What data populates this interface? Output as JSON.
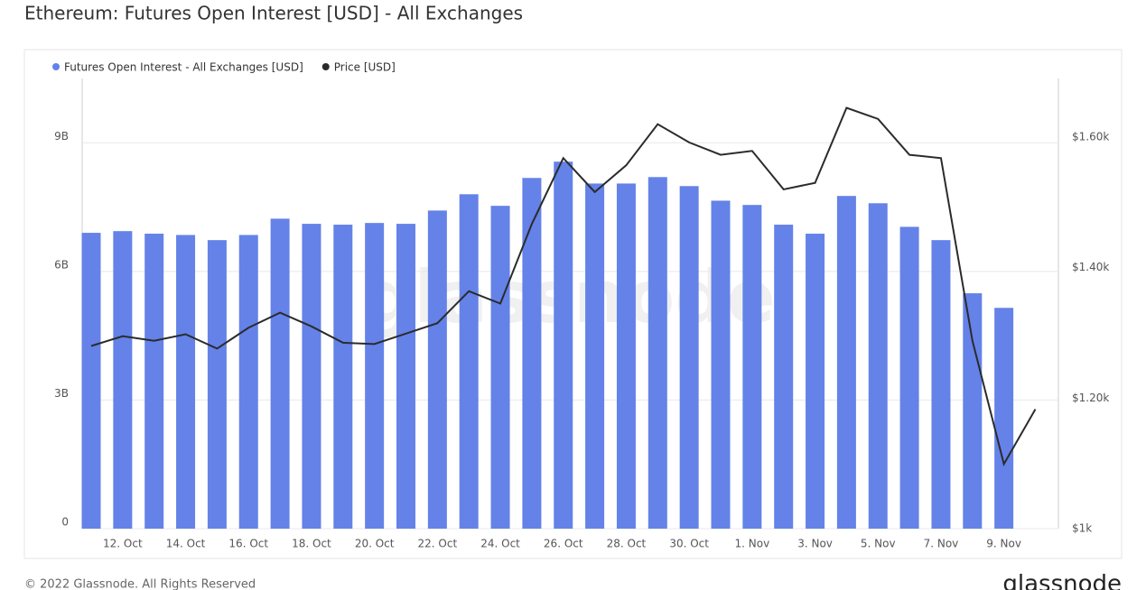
{
  "chart_data": {
    "type": "bar_line",
    "title": "Ethereum: Futures Open Interest [USD] - All Exchanges",
    "footer": "© 2022 Glassnode. All Rights Reserved",
    "brand": "glassnode",
    "categories": [
      null,
      "12. Oct",
      null,
      "14. Oct",
      null,
      "16. Oct",
      null,
      "18. Oct",
      null,
      "20. Oct",
      null,
      "22. Oct",
      null,
      "24. Oct",
      null,
      "26. Oct",
      null,
      "28. Oct",
      null,
      "30. Oct",
      null,
      "1. Nov",
      null,
      "3. Nov",
      null,
      "5. Nov",
      null,
      "7. Nov",
      null,
      "9. Nov",
      null
    ],
    "series": [
      {
        "name": "Futures Open Interest - All Exchanges [USD]",
        "color": "#6482e8",
        "kind": "bar",
        "axis": "y",
        "values": [
          6.9,
          6.94,
          6.88,
          6.85,
          6.73,
          6.85,
          7.23,
          7.11,
          7.09,
          7.13,
          7.11,
          7.42,
          7.8,
          7.53,
          8.18,
          8.56,
          8.05,
          8.05,
          8.2,
          7.99,
          7.65,
          7.55,
          7.09,
          6.88,
          7.76,
          7.59,
          7.04,
          6.73,
          5.49,
          5.15,
          null
        ]
      },
      {
        "name": "Price [USD]",
        "color": "#2b2b2b",
        "kind": "line",
        "axis": "y2",
        "values": [
          1280,
          1295,
          1288,
          1298,
          1276,
          1308,
          1331,
          1310,
          1285,
          1283,
          1299,
          1315,
          1364,
          1345,
          1467,
          1568,
          1516,
          1557,
          1620,
          1592,
          1573,
          1579,
          1520,
          1530,
          1645,
          1628,
          1573,
          1568,
          1288,
          1099,
          1183
        ]
      }
    ],
    "ylim": [
      0,
      10.5
    ],
    "yticks": [
      {
        "value": 0,
        "label": "0"
      },
      {
        "value": 3,
        "label": "3B"
      },
      {
        "value": 6,
        "label": "6B"
      },
      {
        "value": 9,
        "label": "9B"
      }
    ],
    "y2lim": [
      1000,
      1690
    ],
    "y2ticks": [
      {
        "value": 1000,
        "label": "$1k"
      },
      {
        "value": 1200,
        "label": "$1.20k"
      },
      {
        "value": 1400,
        "label": "$1.40k"
      },
      {
        "value": 1600,
        "label": "$1.60k"
      }
    ],
    "grid": true
  }
}
